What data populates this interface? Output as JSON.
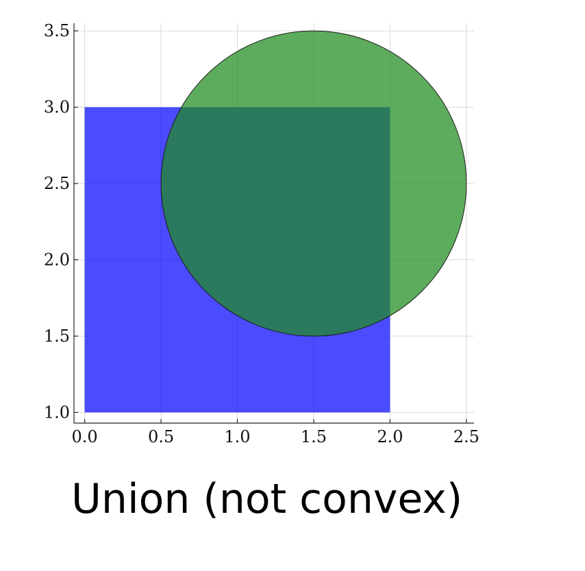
{
  "chart_data": {
    "type": "area",
    "title": "",
    "xlabel": "",
    "ylabel": "",
    "xlim": [
      -0.07,
      2.55
    ],
    "ylim": [
      0.93,
      3.55
    ],
    "x_ticks": [
      0.0,
      0.5,
      1.0,
      1.5,
      2.0,
      2.5
    ],
    "y_ticks": [
      1.0,
      1.5,
      2.0,
      2.5,
      3.0,
      3.5
    ],
    "x_tick_labels": [
      "0.0",
      "0.5",
      "1.0",
      "1.5",
      "2.0",
      "2.5"
    ],
    "y_tick_labels": [
      "1.0",
      "1.5",
      "2.0",
      "2.5",
      "3.0",
      "3.5"
    ],
    "grid": true,
    "shapes": [
      {
        "kind": "rectangle",
        "x_min": 0.0,
        "x_max": 2.0,
        "y_min": 1.0,
        "y_max": 3.0,
        "color": "#0000ff",
        "opacity": 0.7
      },
      {
        "kind": "circle",
        "center_x": 1.5,
        "center_y": 2.5,
        "radius": 1.0,
        "color": "#1e8c1e",
        "stroke": "#1a1a1a",
        "opacity": 0.72
      }
    ]
  },
  "caption": "Union (not convex)"
}
